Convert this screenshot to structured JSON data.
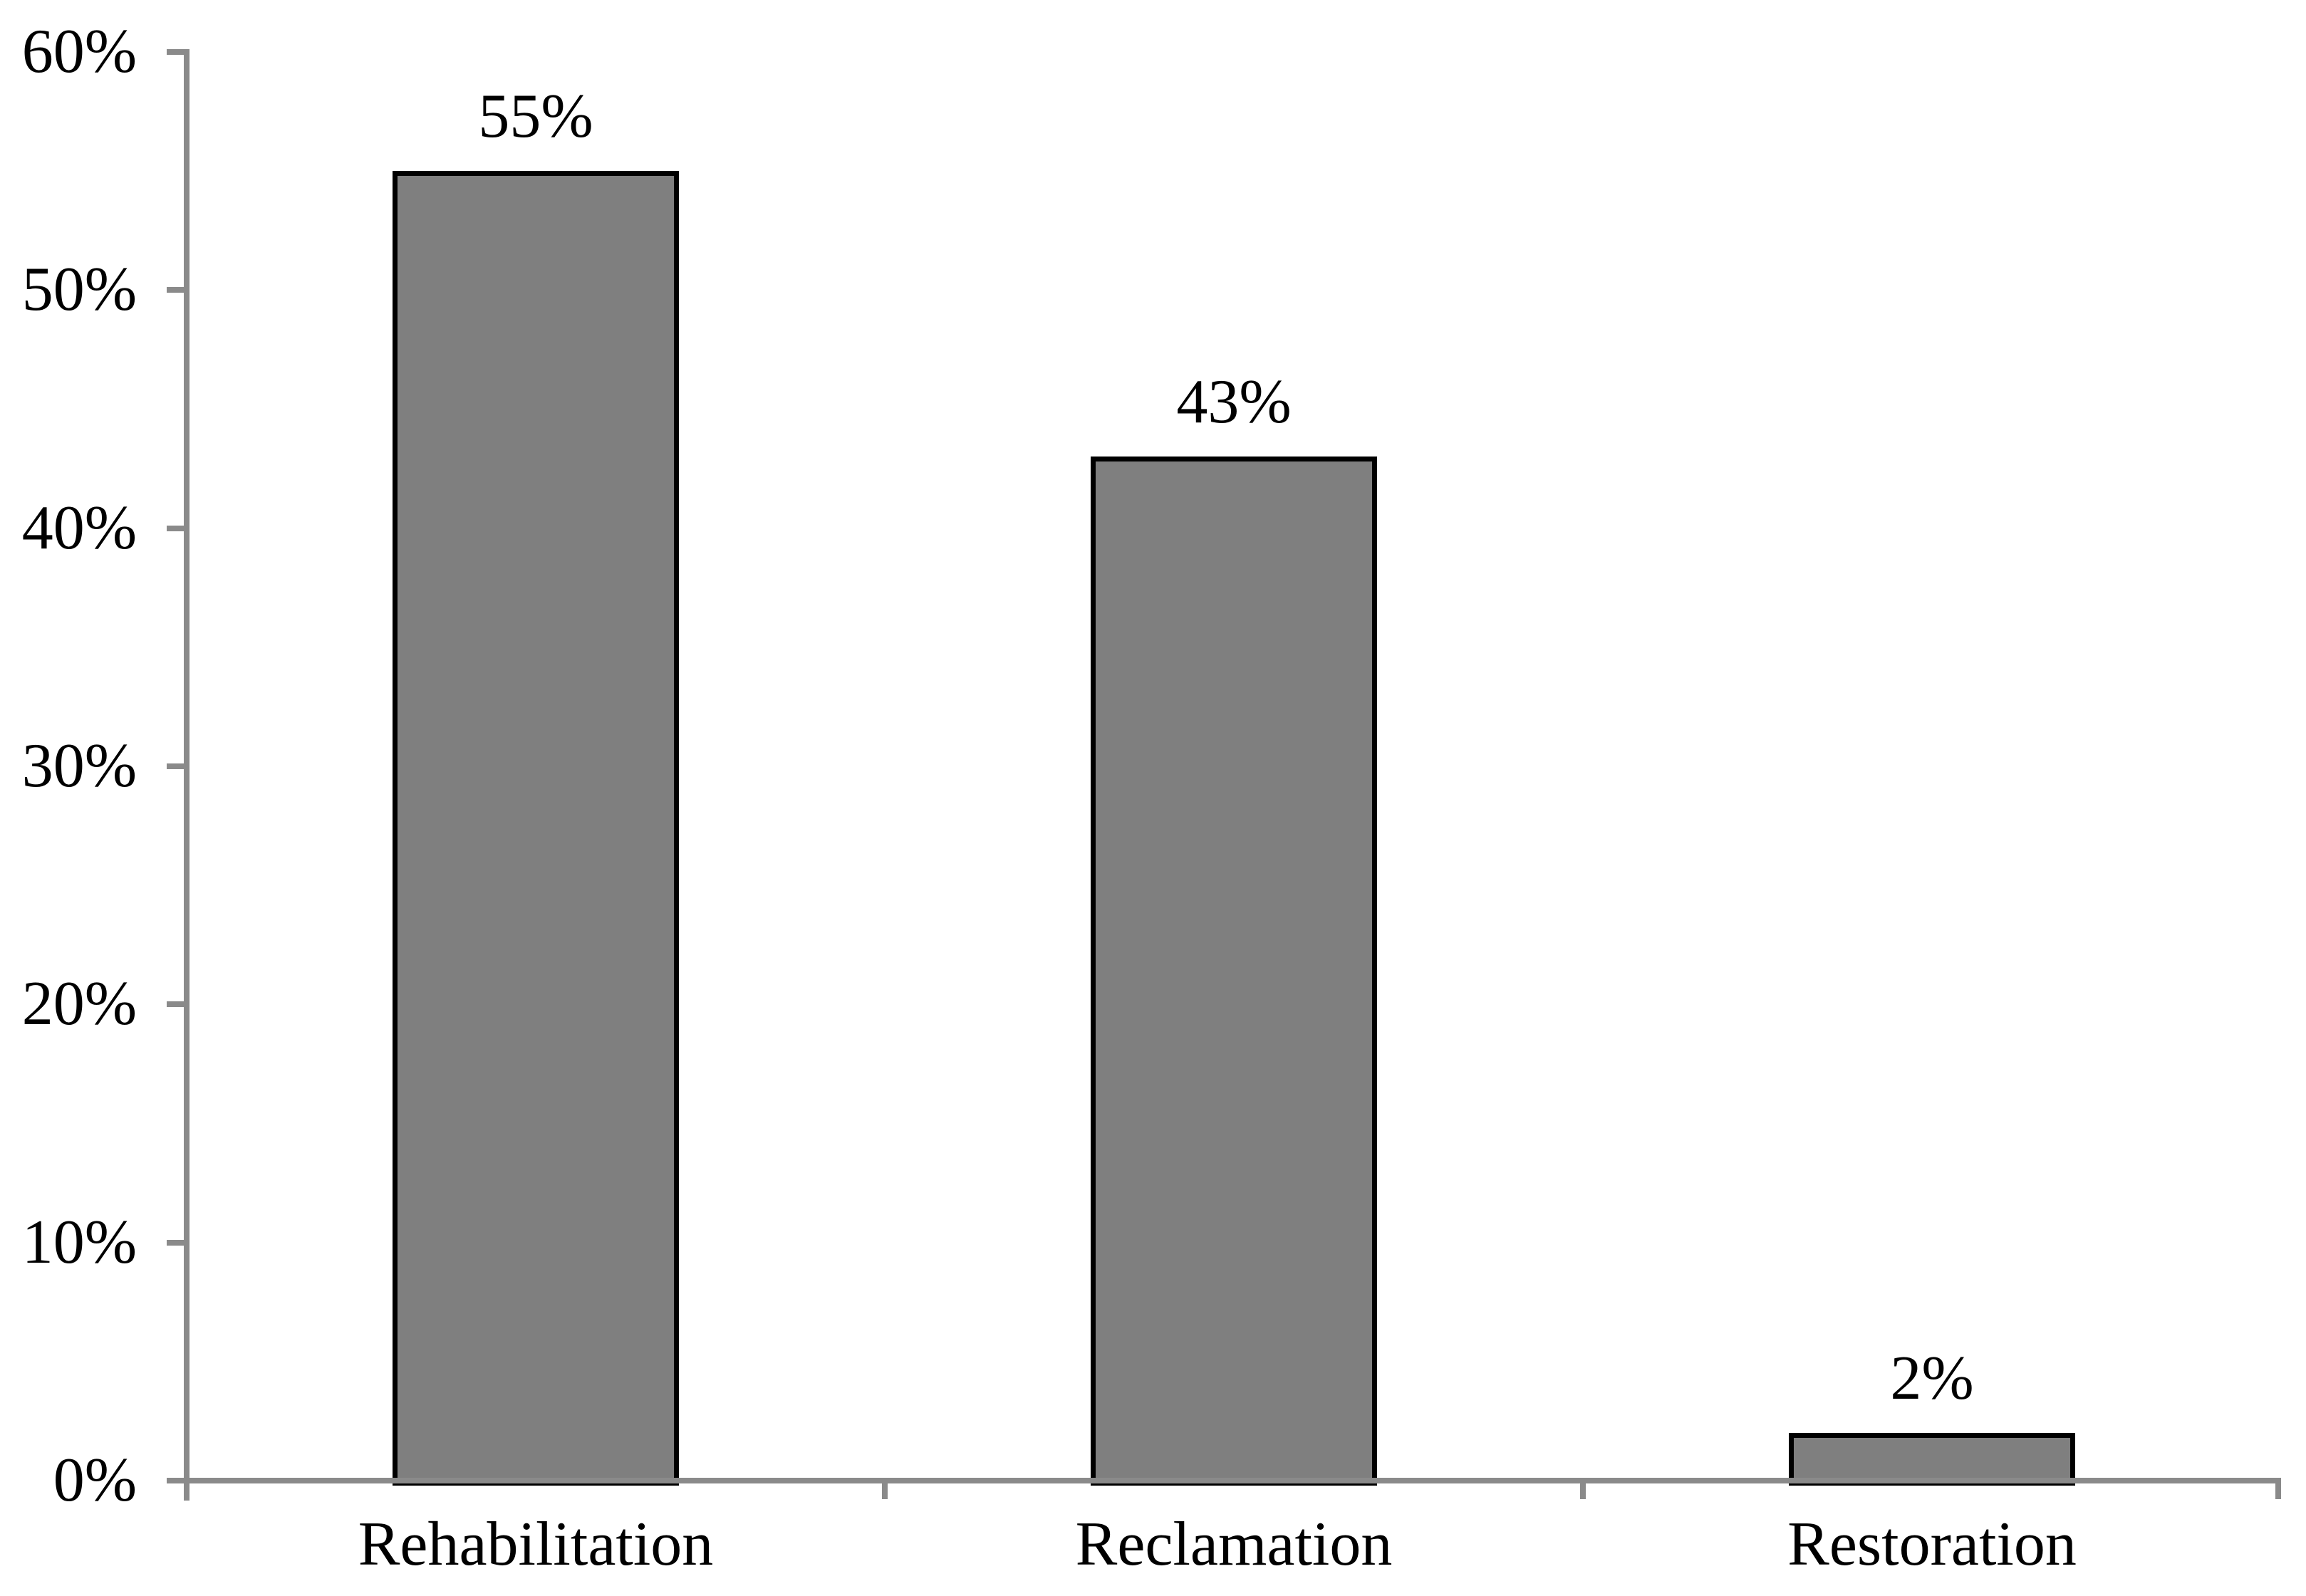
{
  "chart_data": {
    "type": "bar",
    "title": "",
    "xlabel": "",
    "ylabel": "",
    "categories": [
      "Rehabilitation",
      "Reclamation",
      "Restoration"
    ],
    "values": [
      55,
      43,
      2
    ],
    "data_labels": [
      "55%",
      "43%",
      "2%"
    ],
    "ylim": [
      0,
      60
    ],
    "yticks": [
      {
        "value": 60,
        "label": "60%"
      },
      {
        "value": 50,
        "label": "50%"
      },
      {
        "value": 40,
        "label": "40%"
      },
      {
        "value": 30,
        "label": "30%"
      },
      {
        "value": 20,
        "label": "20%"
      },
      {
        "value": 10,
        "label": "10%"
      },
      {
        "value": 0,
        "label": "0%"
      }
    ],
    "grid": false,
    "legend": false,
    "colors": {
      "background": "#FFFFFF",
      "bar_fill": "#7F7F7F",
      "bar_border": "#000000",
      "axis": "#8A8A8A",
      "text": "#000000"
    }
  }
}
